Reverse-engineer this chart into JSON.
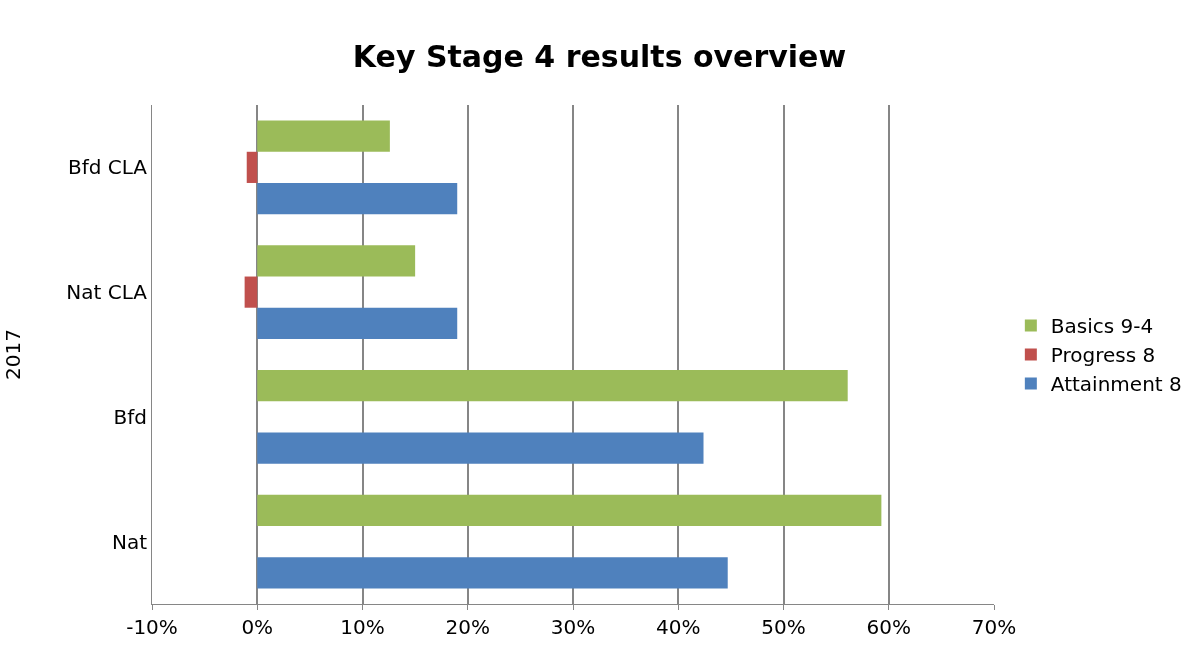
{
  "chart_data": {
    "type": "bar",
    "orientation": "horizontal",
    "title": "Key Stage 4 results overview",
    "ylabel": "2017",
    "categories": [
      "Bfd CLA",
      "Nat CLA",
      "Bfd",
      "Nat"
    ],
    "series": [
      {
        "name": "Basics 9-4",
        "color": "#9bbb59",
        "values": [
          12.6,
          15.0,
          56.1,
          59.3
        ]
      },
      {
        "name": "Progress 8",
        "color": "#c0504d",
        "values": [
          -1.0,
          -1.2,
          null,
          null
        ]
      },
      {
        "name": "Attainment 8",
        "color": "#4f81bd",
        "values": [
          19.0,
          19.0,
          42.4,
          44.7
        ]
      }
    ],
    "xlim": [
      -10,
      70
    ],
    "xticks": [
      {
        "value": -10,
        "label": "-10%"
      },
      {
        "value": 0,
        "label": "0%"
      },
      {
        "value": 10,
        "label": "10%"
      },
      {
        "value": 20,
        "label": "20%"
      },
      {
        "value": 30,
        "label": "30%"
      },
      {
        "value": 40,
        "label": "40%"
      },
      {
        "value": 50,
        "label": "50%"
      },
      {
        "value": 60,
        "label": "60%"
      },
      {
        "value": 70,
        "label": "70%"
      }
    ],
    "grid": "x",
    "legend": "right"
  }
}
